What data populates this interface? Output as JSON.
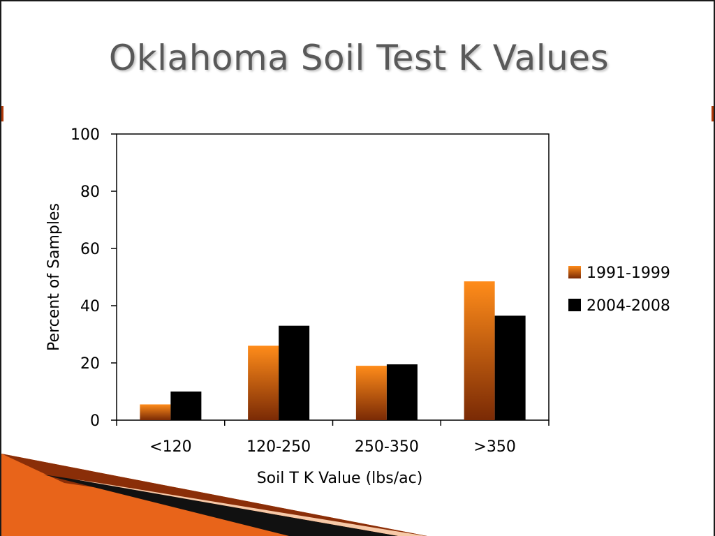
{
  "slide": {
    "title": "Oklahoma Soil Test K Values"
  },
  "colors": {
    "series_1_top": "#ff8c1a",
    "series_1_bottom": "#7a2a05",
    "series_2": "#000000",
    "accent_orange": "#e8641a",
    "accent_peach": "#f7c9a8",
    "title_text": "#595959"
  },
  "chart_data": {
    "type": "bar",
    "title": "",
    "xlabel": "Soil T K Value (lbs/ac)",
    "ylabel": "Percent of Samples",
    "categories": [
      "<120",
      "120-250",
      "250-350",
      ">350"
    ],
    "ylim": [
      0,
      100
    ],
    "yticks": [
      0,
      20,
      40,
      60,
      80,
      100
    ],
    "grid": false,
    "legend_position": "right",
    "series": [
      {
        "name": "1991-1999",
        "values": [
          5.5,
          26,
          19,
          48.5
        ],
        "color": "#e8641a"
      },
      {
        "name": "2004-2008",
        "values": [
          10,
          33,
          19.5,
          36.5
        ],
        "color": "#000000"
      }
    ]
  }
}
